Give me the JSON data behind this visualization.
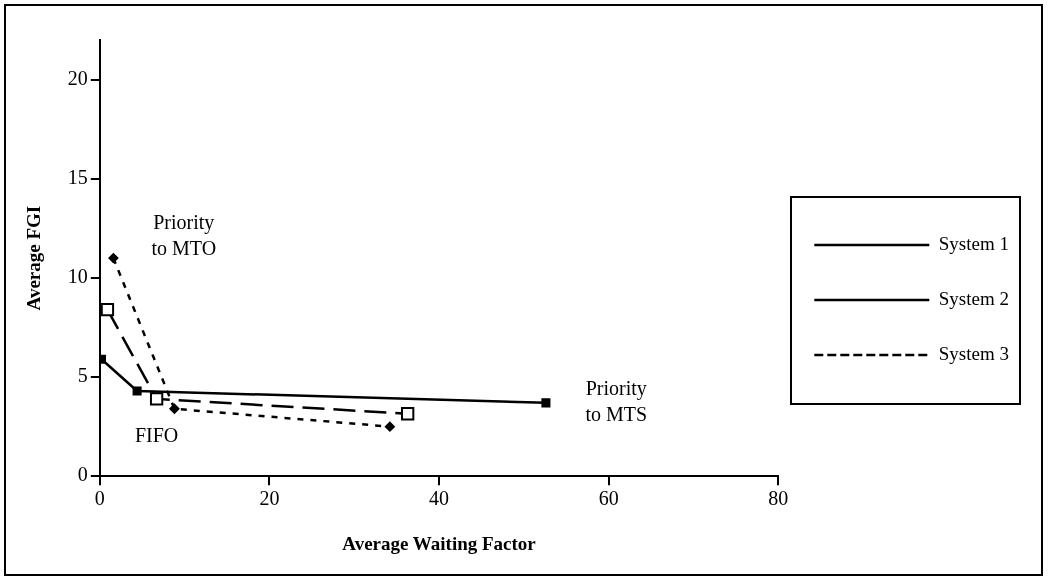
{
  "chart_data": {
    "type": "line",
    "xlabel": "Average Waiting Factor",
    "ylabel": "Average FGI",
    "xlim": [
      0,
      80
    ],
    "xticks": [
      0,
      20,
      40,
      60,
      80
    ],
    "ylim": [
      0,
      22
    ],
    "yticks": [
      0,
      5,
      10,
      15,
      20
    ],
    "grid": false,
    "legend": "right",
    "series": [
      {
        "name": "System 1",
        "color": "#000000",
        "line_style": "solid",
        "marker": "square",
        "x": [
          0.2,
          4.4,
          52.6
        ],
        "values": [
          5.9,
          4.3,
          3.7
        ]
      },
      {
        "name": "System 2",
        "color": "#000000",
        "line_style": "dashed",
        "marker": "square-open",
        "x": [
          0.9,
          6.7,
          36.3
        ],
        "values": [
          8.4,
          3.9,
          3.15
        ]
      },
      {
        "name": "System 3",
        "color": "#000000",
        "line_style": "dotted",
        "marker": "diamond",
        "x": [
          1.6,
          8.8,
          34.2
        ],
        "values": [
          11.0,
          3.4,
          2.5
        ]
      }
    ],
    "annotations": [
      "Priority\nto MTO",
      "FIFO",
      "Priority\nto MTS"
    ]
  }
}
